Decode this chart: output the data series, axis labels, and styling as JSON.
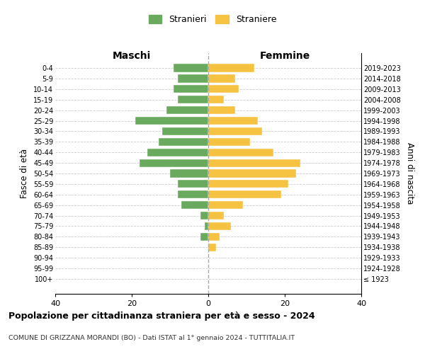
{
  "age_groups": [
    "100+",
    "95-99",
    "90-94",
    "85-89",
    "80-84",
    "75-79",
    "70-74",
    "65-69",
    "60-64",
    "55-59",
    "50-54",
    "45-49",
    "40-44",
    "35-39",
    "30-34",
    "25-29",
    "20-24",
    "15-19",
    "10-14",
    "5-9",
    "0-4"
  ],
  "birth_years": [
    "≤ 1923",
    "1924-1928",
    "1929-1933",
    "1934-1938",
    "1939-1943",
    "1944-1948",
    "1949-1953",
    "1954-1958",
    "1959-1963",
    "1964-1968",
    "1969-1973",
    "1974-1978",
    "1979-1983",
    "1984-1988",
    "1989-1993",
    "1994-1998",
    "1999-2003",
    "2004-2008",
    "2009-2013",
    "2014-2018",
    "2019-2023"
  ],
  "maschi": [
    0,
    0,
    0,
    0,
    2,
    1,
    2,
    7,
    8,
    8,
    10,
    18,
    16,
    13,
    12,
    19,
    11,
    8,
    9,
    8,
    9
  ],
  "femmine": [
    0,
    0,
    0,
    2,
    3,
    6,
    4,
    9,
    19,
    21,
    23,
    24,
    17,
    11,
    14,
    13,
    7,
    4,
    8,
    7,
    12
  ],
  "maschi_color": "#6aaa5e",
  "femmine_color": "#f5c242",
  "title": "Popolazione per cittadinanza straniera per età e sesso - 2024",
  "subtitle": "COMUNE DI GRIZZANA MORANDI (BO) - Dati ISTAT al 1° gennaio 2024 - TUTTITALIA.IT",
  "xlabel_left": "Maschi",
  "xlabel_right": "Femmine",
  "ylabel_left": "Fasce di età",
  "ylabel_right": "Anni di nascita",
  "xlim": 40,
  "legend_maschi": "Stranieri",
  "legend_femmine": "Straniere",
  "background_color": "#ffffff",
  "grid_color": "#cccccc"
}
